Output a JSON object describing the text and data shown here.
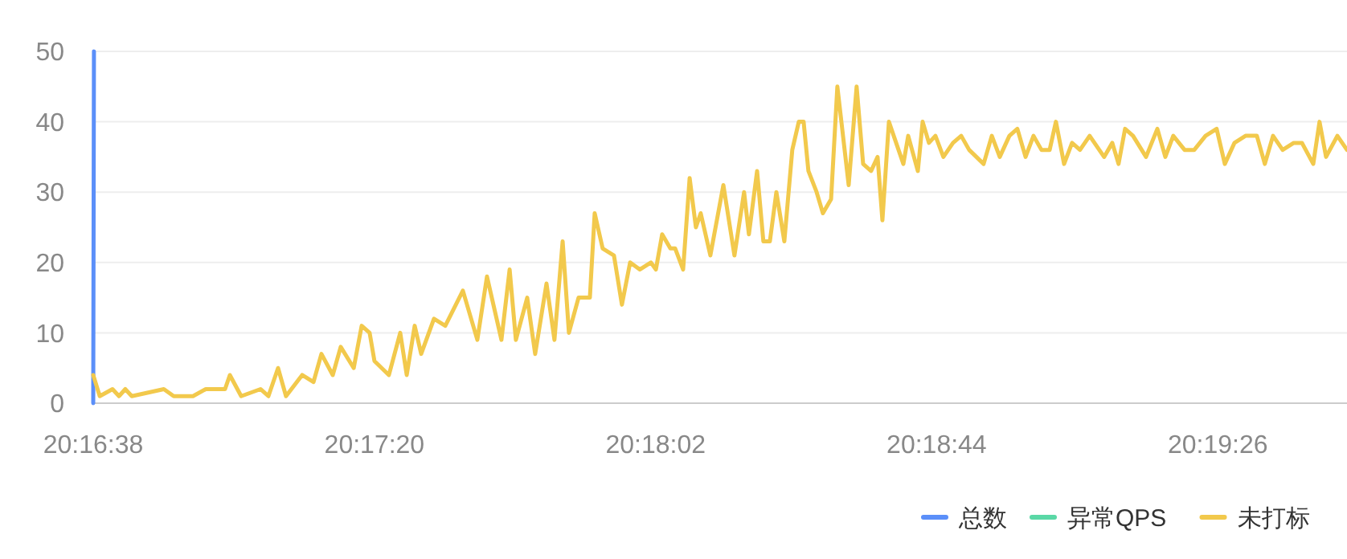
{
  "chart_data": {
    "type": "line",
    "xlim": [
      20.27722,
      20.32925
    ],
    "ylim": [
      0,
      50
    ],
    "xticks": [
      {
        "value": 20.27722,
        "label": "20:16:38"
      },
      {
        "value": 20.28889,
        "label": "20:17:20"
      },
      {
        "value": 20.30056,
        "label": "20:18:02"
      },
      {
        "value": 20.31222,
        "label": "20:18:44"
      },
      {
        "value": 20.32389,
        "label": "20:19:26"
      }
    ],
    "yticks": [
      0,
      10,
      20,
      30,
      40,
      50
    ],
    "grid": "y",
    "legend": "bottom right",
    "series": [
      {
        "name": "总数",
        "color": "#5b8ff9",
        "x": [
          20.27722,
          20.27725
        ],
        "values": [
          0,
          50
        ]
      },
      {
        "name": "异常QPS",
        "color": "#5ad8a6"
      },
      {
        "name": "未打标",
        "color": "#f2c94c",
        "x": [
          20.27722,
          20.27749,
          20.27802,
          20.27829,
          20.27855,
          20.27882,
          20.28015,
          20.28056,
          20.28136,
          20.28189,
          20.28269,
          20.28289,
          20.28336,
          20.28416,
          20.28449,
          20.28489,
          20.28522,
          20.28589,
          20.28636,
          20.28669,
          20.28716,
          20.28749,
          20.28803,
          20.28836,
          20.28869,
          20.28889,
          20.28949,
          20.28996,
          20.29023,
          20.29056,
          20.29083,
          20.29136,
          20.29183,
          20.29256,
          20.29316,
          20.29356,
          20.29416,
          20.2945,
          20.29476,
          20.29523,
          20.29556,
          20.29603,
          20.29636,
          20.2967,
          20.29696,
          20.29736,
          20.29783,
          20.29803,
          20.29836,
          20.29883,
          20.29916,
          20.2995,
          20.2999,
          20.30036,
          20.30057,
          20.30083,
          20.30117,
          20.30137,
          20.3017,
          20.30197,
          20.30223,
          20.30243,
          20.30283,
          20.30337,
          20.30383,
          20.30423,
          20.30443,
          20.30477,
          20.30503,
          20.3053,
          20.30557,
          20.3059,
          20.30623,
          20.3065,
          20.3067,
          20.3069,
          20.30724,
          20.3075,
          20.30784,
          20.3081,
          20.30857,
          20.3089,
          20.30917,
          20.3095,
          20.30977,
          20.30997,
          20.31024,
          20.31084,
          20.31104,
          20.31144,
          20.31164,
          20.3119,
          20.31217,
          20.3125,
          20.3129,
          20.31324,
          20.31357,
          20.31417,
          20.31451,
          20.31484,
          20.31524,
          20.31557,
          20.31591,
          20.31624,
          20.31657,
          20.31691,
          20.31717,
          20.31751,
          20.31784,
          20.31817,
          20.31857,
          20.31917,
          20.31951,
          20.31977,
          20.32004,
          20.32037,
          20.32091,
          20.32138,
          20.32171,
          20.32204,
          20.32251,
          20.32291,
          20.32338,
          20.32384,
          20.32418,
          20.32458,
          20.32504,
          20.32551,
          20.32584,
          20.32618,
          20.32658,
          20.32704,
          20.32738,
          20.32785,
          20.32811,
          20.32838,
          20.32885,
          20.32925
        ],
        "values": [
          4,
          1,
          2,
          1,
          2,
          1,
          2,
          1,
          1,
          2,
          2,
          4,
          1,
          2,
          1,
          5,
          1,
          4,
          3,
          7,
          4,
          8,
          5,
          11,
          10,
          6,
          4,
          10,
          4,
          11,
          7,
          12,
          11,
          16,
          9,
          18,
          9,
          19,
          9,
          15,
          7,
          17,
          9,
          23,
          10,
          15,
          15,
          27,
          22,
          21,
          14,
          20,
          19,
          20,
          19,
          24,
          22,
          22,
          19,
          32,
          25,
          27,
          21,
          31,
          21,
          30,
          24,
          33,
          23,
          23,
          30,
          23,
          36,
          40,
          40,
          33,
          30,
          27,
          29,
          45,
          31,
          45,
          34,
          33,
          35,
          26,
          40,
          34,
          38,
          33,
          40,
          37,
          38,
          35,
          37,
          38,
          36,
          34,
          38,
          35,
          38,
          39,
          35,
          38,
          36,
          36,
          40,
          34,
          37,
          36,
          38,
          35,
          37,
          34,
          39,
          38,
          35,
          39,
          35,
          38,
          36,
          36,
          38,
          39,
          34,
          37,
          38,
          38,
          34,
          38,
          36,
          37,
          37,
          34,
          40,
          35,
          38,
          36
        ]
      }
    ]
  }
}
